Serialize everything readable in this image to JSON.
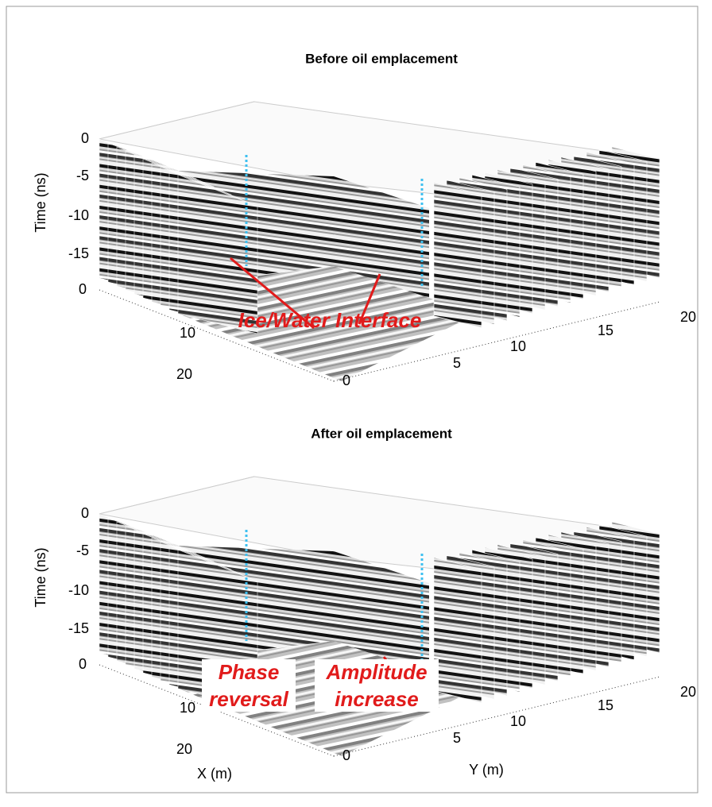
{
  "panels": [
    {
      "title": "Before oil emplacement",
      "z_axis_label": "Time (ns)",
      "z_ticks": [
        0,
        -5,
        -10,
        -15
      ],
      "x_ticks": [
        0,
        10,
        20
      ],
      "y_ticks": [
        0,
        5,
        10,
        15,
        20
      ],
      "annotations": [
        {
          "lines": [
            "Ice/Water Interface"
          ]
        }
      ]
    },
    {
      "title": "After oil emplacement",
      "z_axis_label": "Time (ns)",
      "z_ticks": [
        0,
        -5,
        -10,
        -15
      ],
      "x_ticks": [
        0,
        10,
        20
      ],
      "y_ticks": [
        0,
        5,
        10,
        15,
        20
      ],
      "annotations": [
        {
          "lines": [
            "Phase",
            "reversal"
          ]
        },
        {
          "lines": [
            "Amplitude",
            "increase"
          ]
        }
      ]
    }
  ],
  "x_axis_label": "X (m)",
  "y_axis_label": "Y (m)"
}
